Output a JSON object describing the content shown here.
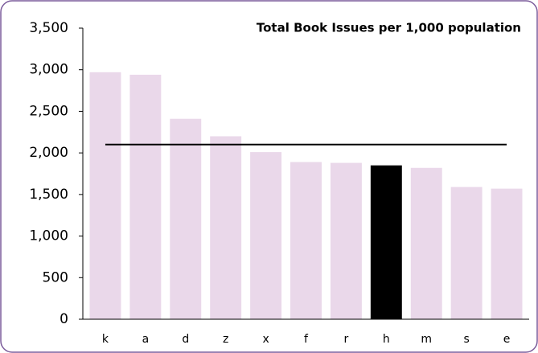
{
  "chart_data": {
    "type": "bar",
    "title": "Total Book Issues per 1,000 population",
    "categories": [
      "k",
      "a",
      "d",
      "z",
      "x",
      "f",
      "r",
      "h",
      "m",
      "s",
      "e"
    ],
    "values": [
      2970,
      2940,
      2410,
      2200,
      2010,
      1890,
      1880,
      1850,
      1820,
      1590,
      1570
    ],
    "colors": [
      "#ead8ea",
      "#ead8ea",
      "#ead8ea",
      "#ead8ea",
      "#ead8ea",
      "#ead8ea",
      "#ead8ea",
      "#000000",
      "#ead8ea",
      "#ead8ea",
      "#ead8ea"
    ],
    "reference_value": 2100,
    "ylim": [
      0,
      3500
    ],
    "yticks": [
      0,
      500,
      {
        "value": 1000,
        "label": "1,000"
      },
      {
        "value": 1500,
        "label": "1,500"
      },
      {
        "value": 2000,
        "label": "2,000"
      },
      {
        "value": 2500,
        "label": "2,500"
      },
      {
        "value": 3000,
        "label": "3,000"
      },
      {
        "value": 3500,
        "label": "3,500"
      }
    ],
    "grid": false
  }
}
